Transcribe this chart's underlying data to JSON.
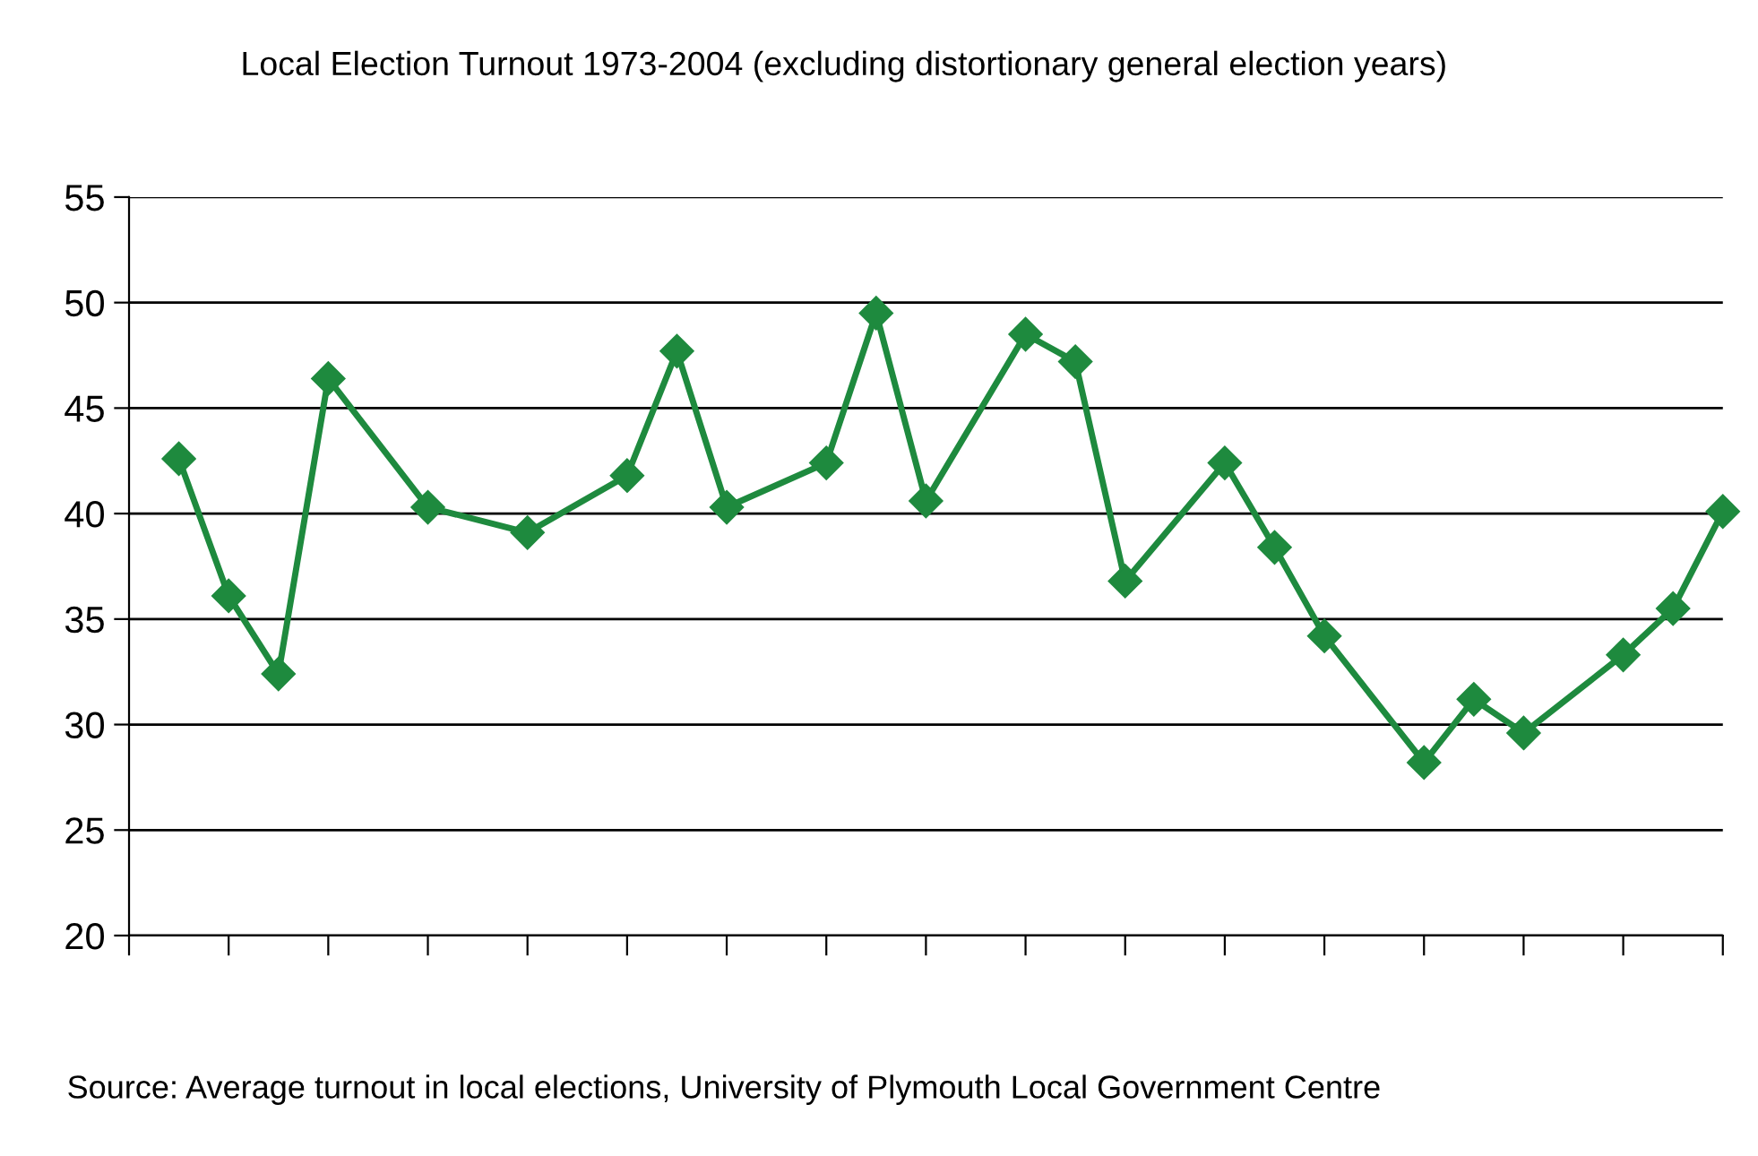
{
  "chart_data": {
    "type": "line",
    "title": "Local Election Turnout 1973-2004 (excluding distortionary general election years)",
    "categories": [
      null,
      null,
      null,
      null,
      null,
      null,
      null,
      null,
      null,
      null,
      null,
      null,
      null,
      null,
      null,
      null,
      null,
      null,
      null,
      null,
      null,
      null,
      null,
      null,
      null,
      null,
      null,
      null,
      null,
      null,
      null,
      null
    ],
    "series": [
      {
        "color": "#1e8a3e",
        "values": [
          42.6,
          36.1,
          32.4,
          46.4,
          null,
          40.3,
          null,
          39.1,
          null,
          41.8,
          47.7,
          40.3,
          null,
          42.4,
          49.5,
          40.6,
          null,
          48.5,
          47.2,
          36.8,
          null,
          42.4,
          38.4,
          34.2,
          null,
          28.2,
          31.2,
          29.6,
          null,
          33.3,
          35.5,
          40.1
        ]
      }
    ],
    "ylim": [
      20,
      55
    ],
    "yticks": [
      20,
      25,
      30,
      35,
      40,
      45,
      50,
      55
    ],
    "grid": "y",
    "legend": false,
    "marker": "diamond",
    "line_style": "solid",
    "tick_labels": "y",
    "annotations": [
      "Source: Average turnout in local elections, University of Plymouth Local Government Centre"
    ]
  }
}
